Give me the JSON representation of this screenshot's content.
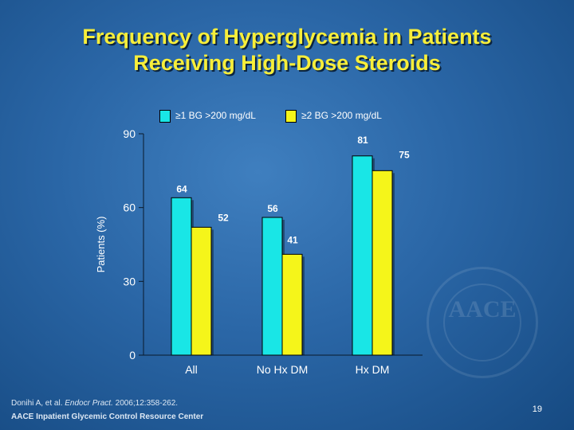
{
  "slide": {
    "title_line1": "Frequency of Hyperglycemia in Patients",
    "title_line2": "Receiving High-Dose Steroids",
    "citation_authors": "Donihi A, et al. ",
    "citation_journal": "Endocr Pract.",
    "citation_details": " 2006;12:358-262.",
    "footer": "AACE Inpatient Glycemic Control Resource Center",
    "slide_number": "19",
    "watermark_text": "AACE"
  },
  "colors": {
    "series1": "#19e6e6",
    "series2": "#f5f51a",
    "title": "#f7ee3a"
  },
  "chart_data": {
    "type": "bar",
    "categories": [
      "All",
      "No Hx DM",
      "Hx DM"
    ],
    "series": [
      {
        "name": "≥1 BG >200 mg/dL",
        "values": [
          64,
          56,
          81
        ]
      },
      {
        "name": "≥2 BG >200 mg/dL",
        "values": [
          52,
          41,
          75
        ]
      }
    ],
    "ylabel": "Patients (%)",
    "xlabel": "",
    "ylim": [
      0,
      90
    ],
    "yticks": [
      0,
      30,
      60,
      90
    ],
    "legend_position": "top",
    "grid": false
  }
}
